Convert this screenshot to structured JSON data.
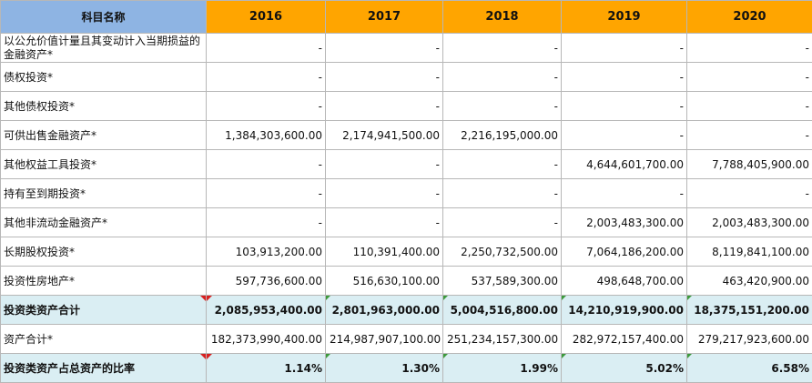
{
  "header": {
    "name_label": "科目名称",
    "years": [
      "2016",
      "2017",
      "2018",
      "2019",
      "2020"
    ]
  },
  "rows": [
    {
      "name": "以公允价值计量且其变动计入当期损益的金融资产*",
      "values": [
        "-",
        "-",
        "-",
        "-",
        "-"
      ]
    },
    {
      "name": "债权投资*",
      "values": [
        "-",
        "-",
        "-",
        "-",
        "-"
      ]
    },
    {
      "name": "其他债权投资*",
      "values": [
        "-",
        "-",
        "-",
        "-",
        "-"
      ]
    },
    {
      "name": "可供出售金融资产*",
      "values": [
        "1,384,303,600.00",
        "2,174,941,500.00",
        "2,216,195,000.00",
        "-",
        "-"
      ]
    },
    {
      "name": "其他权益工具投资*",
      "values": [
        "-",
        "-",
        "-",
        "4,644,601,700.00",
        "7,788,405,900.00"
      ]
    },
    {
      "name": "持有至到期投资*",
      "values": [
        "-",
        "-",
        "-",
        "-",
        "-"
      ]
    },
    {
      "name": "其他非流动金融资产*",
      "values": [
        "-",
        "-",
        "-",
        "2,003,483,300.00",
        "2,003,483,300.00"
      ]
    },
    {
      "name": "长期股权投资*",
      "values": [
        "103,913,200.00",
        "110,391,400.00",
        "2,250,732,500.00",
        "7,064,186,200.00",
        "8,119,841,100.00"
      ]
    },
    {
      "name": "投资性房地产*",
      "values": [
        "597,736,600.00",
        "516,630,100.00",
        "537,589,300.00",
        "498,648,700.00",
        "463,420,900.00"
      ]
    },
    {
      "name": "投资类资产合计",
      "values": [
        "2,085,953,400.00",
        "2,801,963,000.00",
        "5,004,516,800.00",
        "14,210,919,900.00",
        "18,375,151,200.00"
      ]
    },
    {
      "name": "资产合计*",
      "values": [
        "182,373,990,400.00",
        "214,987,907,100.00",
        "251,234,157,300.00",
        "282,972,157,400.00",
        "279,217,923,600.00"
      ]
    },
    {
      "name": "投资类资产占总资产的比率",
      "values": [
        "1.14%",
        "1.30%",
        "1.99%",
        "5.02%",
        "6.58%"
      ]
    }
  ],
  "colors": {
    "header_name_bg": "#8eb4e3",
    "header_year_bg": "#ffa500",
    "highlight_row_bg": "#daeef3",
    "comment_marker": "#d82020",
    "formula_marker": "#3c9a3c"
  }
}
